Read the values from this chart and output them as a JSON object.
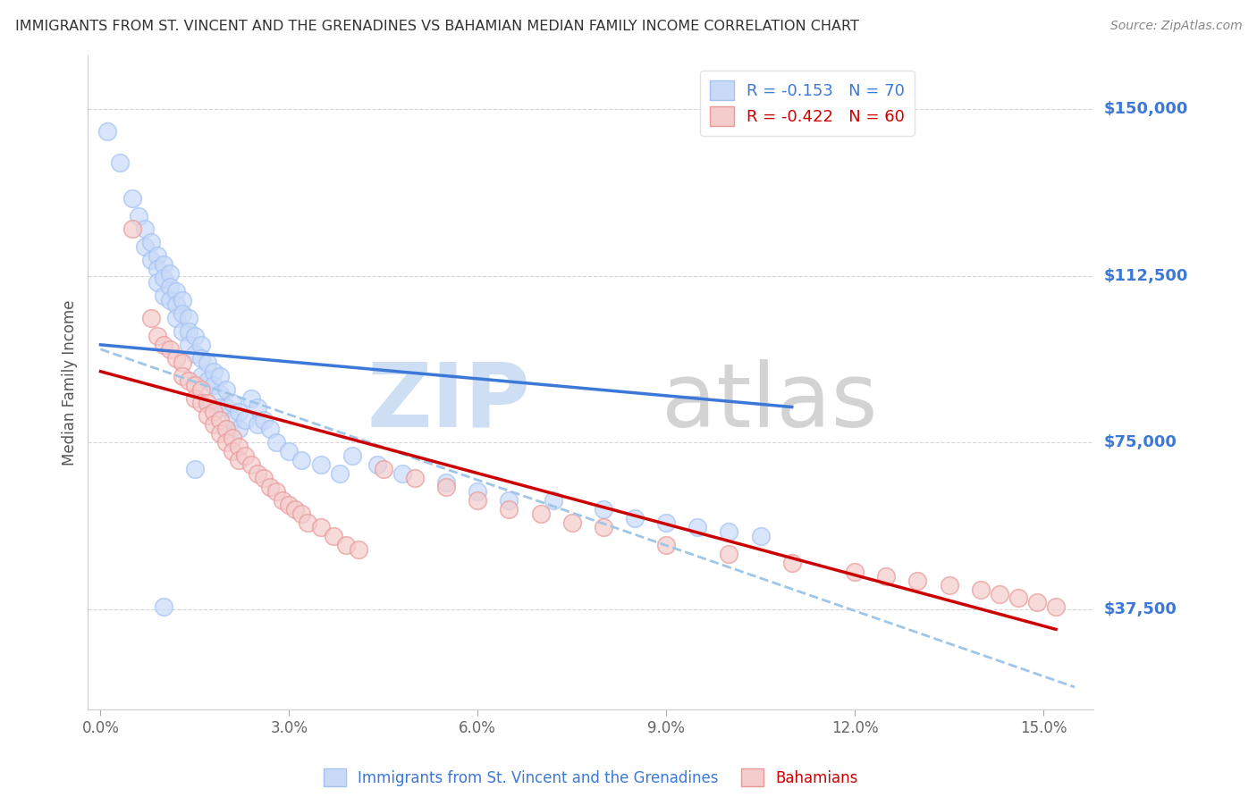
{
  "title": "IMMIGRANTS FROM ST. VINCENT AND THE GRENADINES VS BAHAMIAN MEDIAN FAMILY INCOME CORRELATION CHART",
  "source": "Source: ZipAtlas.com",
  "ylabel": "Median Family Income",
  "xlabel_ticks": [
    "0.0%",
    "3.0%",
    "6.0%",
    "9.0%",
    "12.0%",
    "15.0%"
  ],
  "xlabel_vals": [
    0.0,
    0.03,
    0.06,
    0.09,
    0.12,
    0.15
  ],
  "ytick_labels": [
    "$150,000",
    "$112,500",
    "$75,000",
    "$37,500"
  ],
  "ytick_vals": [
    150000,
    112500,
    75000,
    37500
  ],
  "ylim": [
    15000,
    162000
  ],
  "xlim": [
    -0.002,
    0.158
  ],
  "legend_blue_r": "-0.153",
  "legend_blue_n": "70",
  "legend_pink_r": "-0.422",
  "legend_pink_n": "60",
  "legend_label_blue": "Immigrants from St. Vincent and the Grenadines",
  "legend_label_pink": "Bahamians",
  "scatter_blue_x": [
    0.001,
    0.003,
    0.005,
    0.006,
    0.007,
    0.007,
    0.008,
    0.008,
    0.009,
    0.009,
    0.009,
    0.01,
    0.01,
    0.01,
    0.011,
    0.011,
    0.011,
    0.012,
    0.012,
    0.012,
    0.013,
    0.013,
    0.013,
    0.014,
    0.014,
    0.014,
    0.015,
    0.015,
    0.016,
    0.016,
    0.016,
    0.017,
    0.017,
    0.018,
    0.018,
    0.019,
    0.019,
    0.019,
    0.02,
    0.02,
    0.021,
    0.021,
    0.022,
    0.022,
    0.023,
    0.024,
    0.025,
    0.025,
    0.026,
    0.027,
    0.028,
    0.03,
    0.032,
    0.035,
    0.038,
    0.04,
    0.044,
    0.048,
    0.055,
    0.06,
    0.065,
    0.072,
    0.08,
    0.085,
    0.09,
    0.095,
    0.1,
    0.105,
    0.01,
    0.015
  ],
  "scatter_blue_y": [
    145000,
    138000,
    130000,
    126000,
    123000,
    119000,
    120000,
    116000,
    117000,
    114000,
    111000,
    115000,
    112000,
    108000,
    113000,
    110000,
    107000,
    109000,
    106000,
    103000,
    107000,
    104000,
    100000,
    103000,
    100000,
    97000,
    99000,
    95000,
    97000,
    94000,
    90000,
    93000,
    89000,
    91000,
    88000,
    90000,
    86000,
    83000,
    87000,
    83000,
    84000,
    80000,
    82000,
    78000,
    80000,
    85000,
    83000,
    79000,
    80000,
    78000,
    75000,
    73000,
    71000,
    70000,
    68000,
    72000,
    70000,
    68000,
    66000,
    64000,
    62000,
    62000,
    60000,
    58000,
    57000,
    56000,
    55000,
    54000,
    38000,
    69000
  ],
  "scatter_pink_x": [
    0.005,
    0.008,
    0.009,
    0.01,
    0.011,
    0.012,
    0.013,
    0.013,
    0.014,
    0.015,
    0.015,
    0.016,
    0.016,
    0.017,
    0.017,
    0.018,
    0.018,
    0.019,
    0.019,
    0.02,
    0.02,
    0.021,
    0.021,
    0.022,
    0.022,
    0.023,
    0.024,
    0.025,
    0.026,
    0.027,
    0.028,
    0.029,
    0.03,
    0.031,
    0.032,
    0.033,
    0.035,
    0.037,
    0.039,
    0.041,
    0.045,
    0.05,
    0.055,
    0.06,
    0.065,
    0.07,
    0.075,
    0.08,
    0.09,
    0.1,
    0.11,
    0.12,
    0.125,
    0.13,
    0.135,
    0.14,
    0.143,
    0.146,
    0.149,
    0.152
  ],
  "scatter_pink_y": [
    123000,
    103000,
    99000,
    97000,
    96000,
    94000,
    93000,
    90000,
    89000,
    88000,
    85000,
    87000,
    84000,
    84000,
    81000,
    82000,
    79000,
    80000,
    77000,
    78000,
    75000,
    76000,
    73000,
    74000,
    71000,
    72000,
    70000,
    68000,
    67000,
    65000,
    64000,
    62000,
    61000,
    60000,
    59000,
    57000,
    56000,
    54000,
    52000,
    51000,
    69000,
    67000,
    65000,
    62000,
    60000,
    59000,
    57000,
    56000,
    52000,
    50000,
    48000,
    46000,
    45000,
    44000,
    43000,
    42000,
    41000,
    40000,
    39000,
    38000
  ],
  "blue_line_x": [
    0.0,
    0.11
  ],
  "blue_line_y": [
    97000,
    83000
  ],
  "pink_line_x": [
    0.0,
    0.152
  ],
  "pink_line_y": [
    91000,
    33000
  ],
  "dashed_line_x": [
    0.0,
    0.155
  ],
  "dashed_line_y": [
    96000,
    20000
  ],
  "blue_color": "#a4c2f4",
  "pink_color": "#ea9999",
  "blue_fill_color": "#c9daf8",
  "pink_fill_color": "#f4cccc",
  "blue_line_color": "#3c78d8",
  "pink_line_color": "#cc0000",
  "dashed_line_color": "#9fc5e8",
  "title_color": "#333333",
  "source_color": "#888888",
  "ytick_color": "#3c78d8",
  "grid_color": "#cccccc",
  "background_color": "#ffffff"
}
